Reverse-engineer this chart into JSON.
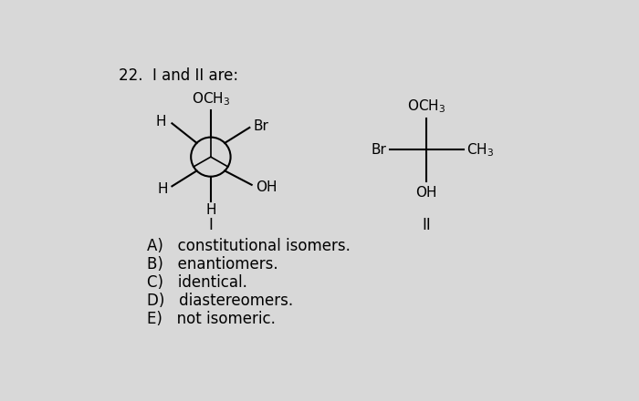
{
  "bg_color": "#d8d8d8",
  "title_text": "22.  I and II are:",
  "choices": [
    "A)   constitutional isomers.",
    "B)   enantiomers.",
    "C)   identical.",
    "D)   diastereomers.",
    "E)   not isomeric."
  ],
  "label_I": "I",
  "label_II": "II",
  "font_size_title": 12,
  "font_size_mol": 11,
  "font_size_choices": 12,
  "font_size_labels": 12
}
